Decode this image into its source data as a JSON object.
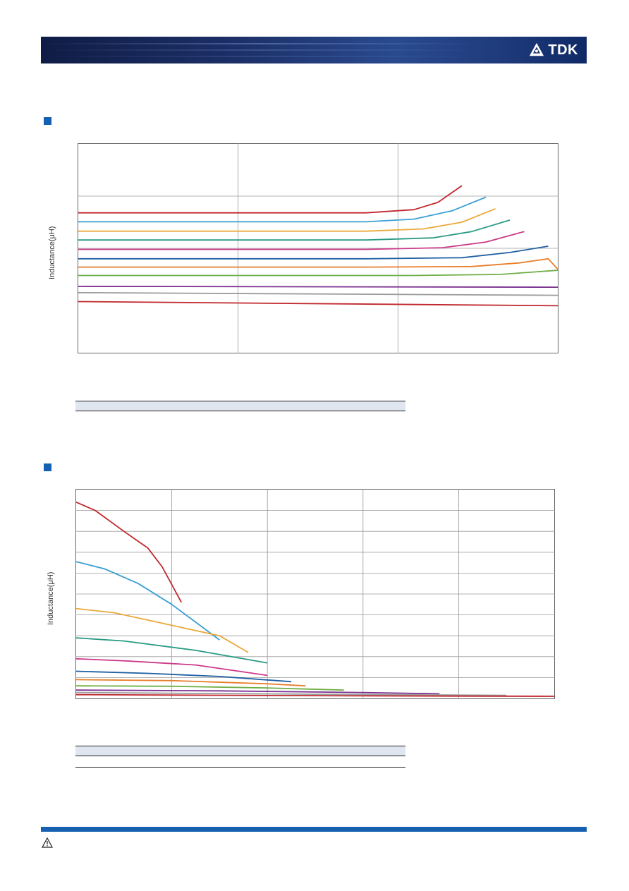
{
  "header": {
    "brand": "TDK",
    "brand_logo_icon": "tdk-logo-icon",
    "band_color": "#1c2f66"
  },
  "section_marker_color": "#1560b0",
  "footer": {
    "bar_color": "#1560b0",
    "warning_icon": "warning-triangle-icon"
  },
  "chart_data": [
    {
      "type": "line",
      "ylabel": "Inductance(μH)",
      "grid": true,
      "x_scale": "relative 0-1 across plot",
      "y_scale": "relative 0-1 across plot",
      "xlim": [
        0,
        1
      ],
      "ylim": [
        0,
        1
      ],
      "series": [
        {
          "color": "#c0272d",
          "points": [
            [
              0,
              0.67
            ],
            [
              0.6,
              0.67
            ],
            [
              0.7,
              0.685
            ],
            [
              0.75,
              0.72
            ],
            [
              0.8,
              0.8
            ]
          ]
        },
        {
          "color": "#3a9fd4",
          "points": [
            [
              0,
              0.627
            ],
            [
              0.6,
              0.627
            ],
            [
              0.7,
              0.64
            ],
            [
              0.78,
              0.68
            ],
            [
              0.85,
              0.745
            ]
          ]
        },
        {
          "color": "#e9a93b",
          "points": [
            [
              0,
              0.582
            ],
            [
              0.6,
              0.582
            ],
            [
              0.72,
              0.593
            ],
            [
              0.8,
              0.625
            ],
            [
              0.87,
              0.69
            ]
          ]
        },
        {
          "color": "#2a9a85",
          "points": [
            [
              0,
              0.54
            ],
            [
              0.6,
              0.54
            ],
            [
              0.74,
              0.55
            ],
            [
              0.82,
              0.58
            ],
            [
              0.9,
              0.635
            ]
          ]
        },
        {
          "color": "#cc3a8a",
          "points": [
            [
              0,
              0.495
            ],
            [
              0.6,
              0.495
            ],
            [
              0.76,
              0.503
            ],
            [
              0.85,
              0.53
            ],
            [
              0.93,
              0.58
            ]
          ]
        },
        {
          "color": "#1f5fa3",
          "points": [
            [
              0,
              0.45
            ],
            [
              0.6,
              0.45
            ],
            [
              0.8,
              0.455
            ],
            [
              0.9,
              0.48
            ],
            [
              0.98,
              0.51
            ]
          ]
        },
        {
          "color": "#e77e2b",
          "points": [
            [
              0,
              0.41
            ],
            [
              0.6,
              0.41
            ],
            [
              0.82,
              0.413
            ],
            [
              0.92,
              0.43
            ],
            [
              0.98,
              0.45
            ],
            [
              1,
              0.4
            ]
          ]
        },
        {
          "color": "#6fae45",
          "points": [
            [
              0,
              0.37
            ],
            [
              0.7,
              0.37
            ],
            [
              0.88,
              0.375
            ],
            [
              1,
              0.395
            ]
          ]
        },
        {
          "color": "#7a2f8f",
          "points": [
            [
              0,
              0.318
            ],
            [
              1,
              0.314
            ]
          ]
        },
        {
          "color": "#9b9b9b",
          "points": [
            [
              0,
              0.288
            ],
            [
              1,
              0.275
            ]
          ]
        },
        {
          "color": "#c0272d",
          "points": [
            [
              0,
              0.245
            ],
            [
              1,
              0.225
            ]
          ]
        }
      ]
    },
    {
      "type": "line",
      "ylabel": "Inductance(μH)",
      "grid": true,
      "x_scale": "relative 0-1 across plot",
      "y_scale": "relative 0-1 across plot",
      "xlim": [
        0,
        1
      ],
      "ylim": [
        0,
        1
      ],
      "series": [
        {
          "color": "#c0272d",
          "points": [
            [
              0,
              0.94
            ],
            [
              0.04,
              0.9
            ],
            [
              0.1,
              0.8
            ],
            [
              0.15,
              0.72
            ],
            [
              0.18,
              0.63
            ],
            [
              0.22,
              0.46
            ]
          ]
        },
        {
          "color": "#3a9fd4",
          "points": [
            [
              0,
              0.655
            ],
            [
              0.06,
              0.62
            ],
            [
              0.13,
              0.55
            ],
            [
              0.2,
              0.45
            ],
            [
              0.3,
              0.28
            ]
          ]
        },
        {
          "color": "#e9a93b",
          "points": [
            [
              0,
              0.43
            ],
            [
              0.08,
              0.41
            ],
            [
              0.2,
              0.35
            ],
            [
              0.3,
              0.3
            ],
            [
              0.36,
              0.22
            ]
          ]
        },
        {
          "color": "#2a9a85",
          "points": [
            [
              0,
              0.29
            ],
            [
              0.1,
              0.275
            ],
            [
              0.25,
              0.23
            ],
            [
              0.4,
              0.17
            ]
          ]
        },
        {
          "color": "#cc3a8a",
          "points": [
            [
              0,
              0.19
            ],
            [
              0.1,
              0.18
            ],
            [
              0.25,
              0.16
            ],
            [
              0.4,
              0.11
            ]
          ]
        },
        {
          "color": "#1f5fa3",
          "points": [
            [
              0,
              0.13
            ],
            [
              0.15,
              0.12
            ],
            [
              0.3,
              0.105
            ],
            [
              0.45,
              0.08
            ]
          ]
        },
        {
          "color": "#e77e2b",
          "points": [
            [
              0,
              0.09
            ],
            [
              0.2,
              0.085
            ],
            [
              0.4,
              0.07
            ],
            [
              0.48,
              0.06
            ]
          ]
        },
        {
          "color": "#6fae45",
          "points": [
            [
              0,
              0.06
            ],
            [
              0.2,
              0.058
            ],
            [
              0.4,
              0.05
            ],
            [
              0.56,
              0.04
            ]
          ]
        },
        {
          "color": "#7a2f8f",
          "points": [
            [
              0,
              0.04
            ],
            [
              0.3,
              0.036
            ],
            [
              0.6,
              0.028
            ],
            [
              0.76,
              0.022
            ]
          ]
        },
        {
          "color": "#9b9b9b",
          "points": [
            [
              0,
              0.028
            ],
            [
              0.5,
              0.02
            ],
            [
              0.9,
              0.015
            ]
          ]
        },
        {
          "color": "#c0272d",
          "points": [
            [
              0,
              0.018
            ],
            [
              0.6,
              0.012
            ],
            [
              1,
              0.01
            ]
          ]
        }
      ]
    }
  ]
}
